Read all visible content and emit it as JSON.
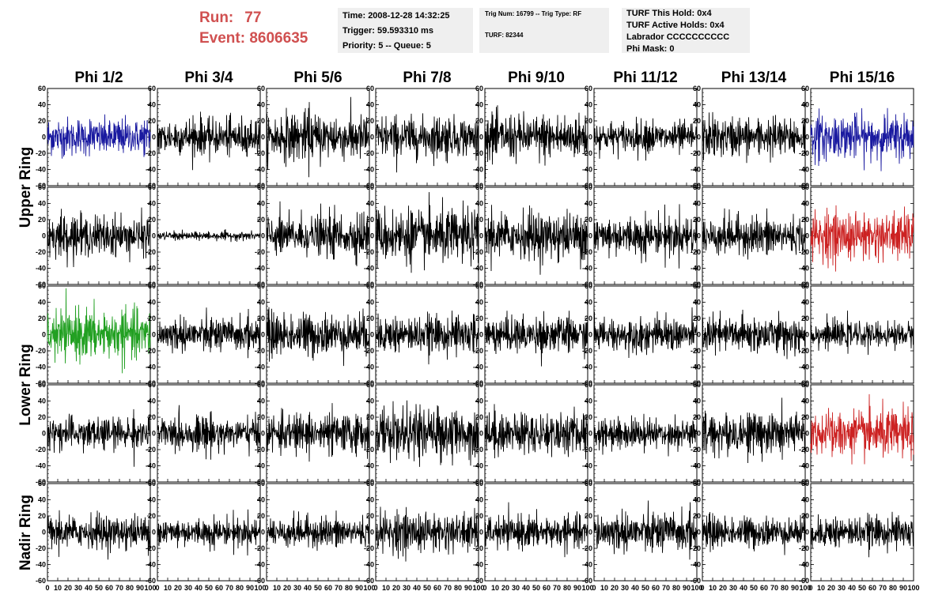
{
  "header": {
    "run_label": "Run:",
    "run_value": "77",
    "event_label": "Event:",
    "event_value": "8606635"
  },
  "info_time": {
    "time": "Time: 2008-12-28 14:32:25",
    "trigger": "Trigger: 59.593310 ms",
    "priority": "Priority: 5 -- Queue: 5"
  },
  "info_trig": {
    "trig": "Trig Num: 16799 -- Trig Type: RF",
    "turf": "TURF: 82344"
  },
  "info_turf": {
    "hold": "TURF This Hold: 0x4",
    "active": "TURF Active Holds: 0x4",
    "labrador": "Labrador CCCCCCCCCC",
    "mask": "Phi Mask: 0"
  },
  "colors": {
    "default": "#000000",
    "blue": "#1a1aa0",
    "red": "#cc2222",
    "green": "#22a022"
  },
  "chart_data": {
    "type": "line",
    "columns": [
      "Phi 1/2",
      "Phi 3/4",
      "Phi 5/6",
      "Phi 7/8",
      "Phi 9/10",
      "Phi 11/12",
      "Phi 13/14",
      "Phi 15/16"
    ],
    "ring_labels": [
      "Upper Ring",
      "Lower Ring",
      "Nadir Ring"
    ],
    "rows": 5,
    "xlim": [
      0,
      100
    ],
    "ylim": [
      -60,
      60
    ],
    "x_tick_labels": [
      "0",
      "10",
      "20",
      "30",
      "40",
      "50",
      "60",
      "70",
      "80",
      "90",
      "100"
    ],
    "y_tick_labels": [
      "60",
      "40",
      "20",
      "0",
      "-20",
      "-40",
      "-60"
    ],
    "series_amplitude": [
      [
        13,
        13,
        17,
        15,
        16,
        11,
        14,
        16
      ],
      [
        14,
        3,
        15,
        19,
        17,
        14,
        14,
        17
      ],
      [
        17,
        12,
        15,
        13,
        13,
        12,
        13,
        9
      ],
      [
        12,
        12,
        14,
        18,
        15,
        11,
        15,
        17
      ],
      [
        12,
        10,
        11,
        14,
        11,
        14,
        11,
        11
      ]
    ],
    "series_color": [
      [
        "blue",
        "default",
        "default",
        "default",
        "default",
        "default",
        "default",
        "blue"
      ],
      [
        "default",
        "default",
        "default",
        "default",
        "default",
        "default",
        "default",
        "red"
      ],
      [
        "green",
        "default",
        "default",
        "default",
        "default",
        "default",
        "default",
        "default"
      ],
      [
        "default",
        "default",
        "default",
        "default",
        "default",
        "default",
        "default",
        "red"
      ],
      [
        "default",
        "default",
        "default",
        "default",
        "default",
        "default",
        "default",
        "default"
      ]
    ]
  }
}
